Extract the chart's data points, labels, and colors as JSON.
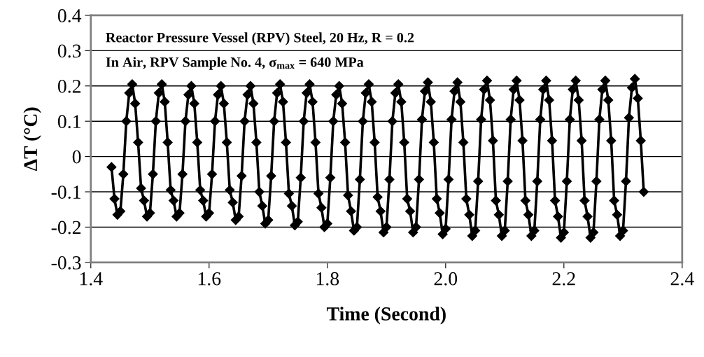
{
  "chart_data": {
    "type": "line",
    "xlabel": "Time (Second)",
    "ylabel": "ΔT (°C)",
    "annotations": [
      "Reactor Pressure Vessel (RPV) Steel, 20 Hz, R = 0.2",
      "In Air, RPV Sample No. 4, σ$_{max}$ = 640 MPa"
    ],
    "x": [
      1.435,
      1.44,
      1.445,
      1.45,
      1.455,
      1.46,
      1.465,
      1.47,
      1.475,
      1.48,
      1.485,
      1.49,
      1.495,
      1.5,
      1.505,
      1.51,
      1.515,
      1.52,
      1.525,
      1.53,
      1.535,
      1.54,
      1.545,
      1.55,
      1.555,
      1.56,
      1.565,
      1.57,
      1.575,
      1.58,
      1.585,
      1.59,
      1.595,
      1.6,
      1.605,
      1.61,
      1.615,
      1.62,
      1.625,
      1.63,
      1.635,
      1.64,
      1.645,
      1.65,
      1.655,
      1.66,
      1.665,
      1.67,
      1.675,
      1.68,
      1.685,
      1.69,
      1.695,
      1.7,
      1.705,
      1.71,
      1.715,
      1.72,
      1.725,
      1.73,
      1.735,
      1.74,
      1.745,
      1.75,
      1.755,
      1.76,
      1.765,
      1.77,
      1.775,
      1.78,
      1.785,
      1.79,
      1.795,
      1.8,
      1.805,
      1.81,
      1.815,
      1.82,
      1.825,
      1.83,
      1.835,
      1.84,
      1.845,
      1.85,
      1.855,
      1.86,
      1.865,
      1.87,
      1.875,
      1.88,
      1.885,
      1.89,
      1.895,
      1.9,
      1.905,
      1.91,
      1.915,
      1.92,
      1.925,
      1.93,
      1.935,
      1.94,
      1.945,
      1.95,
      1.955,
      1.96,
      1.965,
      1.97,
      1.975,
      1.98,
      1.985,
      1.99,
      1.995,
      2.0,
      2.005,
      2.01,
      2.015,
      2.02,
      2.025,
      2.03,
      2.035,
      2.04,
      2.045,
      2.05,
      2.055,
      2.06,
      2.065,
      2.07,
      2.075,
      2.08,
      2.085,
      2.09,
      2.095,
      2.1,
      2.105,
      2.11,
      2.115,
      2.12,
      2.125,
      2.13,
      2.135,
      2.14,
      2.145,
      2.15,
      2.155,
      2.16,
      2.165,
      2.17,
      2.175,
      2.18,
      2.185,
      2.19,
      2.195,
      2.2,
      2.205,
      2.21,
      2.215,
      2.22,
      2.225,
      2.23,
      2.235,
      2.24,
      2.245,
      2.25,
      2.255,
      2.26,
      2.265,
      2.27,
      2.275,
      2.28,
      2.285,
      2.29,
      2.295,
      2.3,
      2.305,
      2.31,
      2.315,
      2.32,
      2.325,
      2.33,
      2.335
    ],
    "series": [
      {
        "color": "#000000",
        "values": [
          -0.03,
          -0.12,
          -0.165,
          -0.155,
          -0.05,
          0.1,
          0.18,
          0.205,
          0.15,
          0.04,
          -0.09,
          -0.125,
          -0.17,
          -0.16,
          -0.05,
          0.1,
          0.18,
          0.205,
          0.155,
          0.04,
          -0.095,
          -0.125,
          -0.17,
          -0.16,
          -0.05,
          0.1,
          0.175,
          0.2,
          0.15,
          0.04,
          -0.095,
          -0.125,
          -0.17,
          -0.16,
          -0.05,
          0.1,
          0.175,
          0.2,
          0.15,
          0.04,
          -0.095,
          -0.13,
          -0.18,
          -0.17,
          -0.055,
          0.1,
          0.175,
          0.2,
          0.15,
          0.04,
          -0.1,
          -0.14,
          -0.19,
          -0.18,
          -0.055,
          0.1,
          0.18,
          0.205,
          0.155,
          0.04,
          -0.105,
          -0.14,
          -0.195,
          -0.185,
          -0.06,
          0.1,
          0.18,
          0.205,
          0.155,
          0.04,
          -0.105,
          -0.145,
          -0.2,
          -0.19,
          -0.06,
          0.1,
          0.175,
          0.2,
          0.15,
          0.04,
          -0.11,
          -0.155,
          -0.21,
          -0.2,
          -0.065,
          0.1,
          0.18,
          0.205,
          0.155,
          0.04,
          -0.115,
          -0.155,
          -0.215,
          -0.2,
          -0.065,
          0.1,
          0.18,
          0.205,
          0.155,
          0.04,
          -0.12,
          -0.155,
          -0.215,
          -0.2,
          -0.065,
          0.105,
          0.185,
          0.21,
          0.155,
          0.04,
          -0.12,
          -0.16,
          -0.22,
          -0.205,
          -0.065,
          0.105,
          0.185,
          0.21,
          0.155,
          0.04,
          -0.12,
          -0.165,
          -0.225,
          -0.21,
          -0.07,
          0.105,
          0.19,
          0.215,
          0.16,
          0.045,
          -0.125,
          -0.165,
          -0.225,
          -0.21,
          -0.07,
          0.105,
          0.19,
          0.215,
          0.16,
          0.045,
          -0.125,
          -0.165,
          -0.225,
          -0.21,
          -0.07,
          0.105,
          0.19,
          0.215,
          0.16,
          0.045,
          -0.125,
          -0.17,
          -0.23,
          -0.215,
          -0.07,
          0.105,
          0.19,
          0.215,
          0.16,
          0.045,
          -0.125,
          -0.17,
          -0.23,
          -0.215,
          -0.07,
          0.105,
          0.19,
          0.215,
          0.16,
          0.045,
          -0.125,
          -0.165,
          -0.225,
          -0.21,
          -0.07,
          0.11,
          0.195,
          0.22,
          0.165,
          0.045,
          -0.1
        ]
      }
    ],
    "xlim": [
      1.4,
      2.4
    ],
    "xticks": [
      1.4,
      1.6,
      1.8,
      {
        "value": 2.0,
        "label": "2.0"
      },
      2.2,
      2.4
    ],
    "ylim": [
      -0.3,
      0.4
    ],
    "yticks": [
      -0.3,
      -0.2,
      -0.1,
      0,
      0.1,
      0.2,
      0.3,
      0.4
    ],
    "grid": "y",
    "marker": "diamond",
    "line_style": "solid"
  }
}
